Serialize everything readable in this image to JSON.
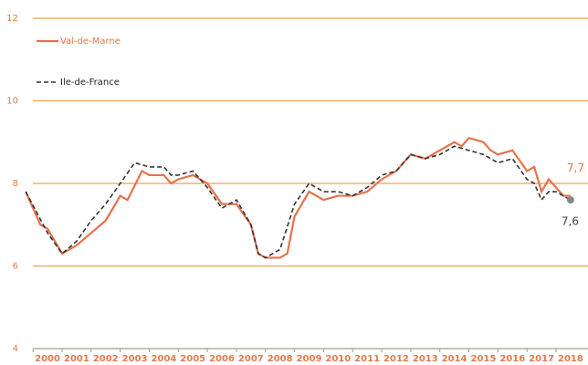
{
  "chart_data": {
    "type": "line",
    "legend": "upper left",
    "grid": true,
    "xlim": [
      1999.9,
      2019.1
    ],
    "xticks": [
      2000,
      2001,
      2002,
      2003,
      2004,
      2005,
      2006,
      2007,
      2008,
      2009,
      2010,
      2011,
      2012,
      2013,
      2014,
      2015,
      2016,
      2017,
      2018
    ],
    "ylim": [
      4,
      12
    ],
    "yticks": [
      4,
      6,
      8,
      10,
      12
    ],
    "series": [
      {
        "name": "Val-de-Marne",
        "color": "#e8714a",
        "dash": false,
        "end_label": "7,7",
        "x": [
          1999.75,
          2000.25,
          2000.5,
          2000.75,
          2001,
          2001.25,
          2001.5,
          2002,
          2002.5,
          2003,
          2003.25,
          2003.75,
          2004,
          2004.5,
          2004.75,
          2005,
          2005.5,
          2006,
          2006.5,
          2007,
          2007.5,
          2007.75,
          2008,
          2008.5,
          2008.75,
          2009,
          2009.5,
          2009.75,
          2010,
          2010.5,
          2011,
          2011.5,
          2012,
          2012.5,
          2013,
          2013.5,
          2014,
          2014.5,
          2014.75,
          2015,
          2015.5,
          2015.75,
          2016,
          2016.5,
          2017,
          2017.25,
          2017.5,
          2017.75,
          2018,
          2018.25,
          2018.5
        ],
        "values": [
          7.8,
          7.0,
          6.9,
          6.6,
          6.3,
          6.4,
          6.5,
          6.8,
          7.1,
          7.7,
          7.6,
          8.3,
          8.2,
          8.2,
          8.0,
          8.1,
          8.2,
          8.0,
          7.5,
          7.5,
          7.0,
          6.3,
          6.2,
          6.2,
          6.3,
          7.2,
          7.8,
          7.7,
          7.6,
          7.7,
          7.7,
          7.8,
          8.1,
          8.3,
          8.7,
          8.6,
          8.8,
          9.0,
          8.9,
          9.1,
          9.0,
          8.8,
          8.7,
          8.8,
          8.3,
          8.4,
          7.8,
          8.1,
          7.9,
          7.7,
          7.7
        ]
      },
      {
        "name": "Ile-de-France",
        "color": "#333333",
        "dash": true,
        "end_label": "7,6",
        "x": [
          1999.75,
          2000.5,
          2001,
          2001.5,
          2002,
          2002.5,
          2003,
          2003.5,
          2004,
          2004.5,
          2004.75,
          2005,
          2005.5,
          2006,
          2006.5,
          2007,
          2007.5,
          2007.75,
          2008,
          2008.5,
          2009,
          2009.5,
          2010,
          2010.5,
          2011,
          2011.5,
          2012,
          2012.5,
          2013,
          2013.5,
          2014,
          2014.5,
          2015,
          2015.5,
          2016,
          2016.5,
          2017,
          2017.25,
          2017.5,
          2017.75,
          2018,
          2018.5
        ],
        "values": [
          7.8,
          6.8,
          6.3,
          6.6,
          7.1,
          7.5,
          8.0,
          8.5,
          8.4,
          8.4,
          8.2,
          8.2,
          8.3,
          7.9,
          7.4,
          7.6,
          7.0,
          6.3,
          6.2,
          6.4,
          7.5,
          8.0,
          7.8,
          7.8,
          7.7,
          7.9,
          8.2,
          8.3,
          8.7,
          8.6,
          8.7,
          8.9,
          8.8,
          8.7,
          8.5,
          8.6,
          8.1,
          8.0,
          7.6,
          7.8,
          7.8,
          7.6
        ]
      }
    ]
  }
}
